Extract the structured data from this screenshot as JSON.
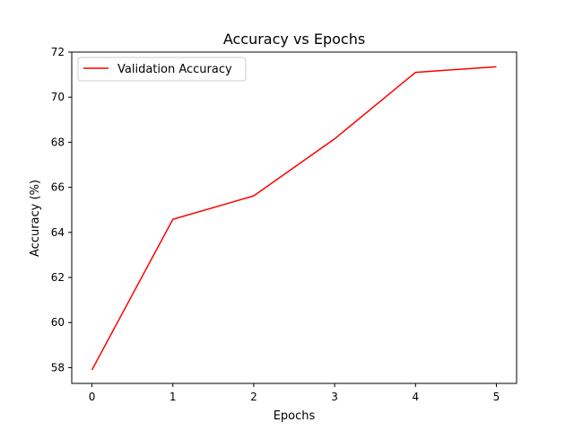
{
  "chart_data": {
    "type": "line",
    "title": "Accuracy vs Epochs",
    "xlabel": "Epochs",
    "ylabel": "Accuracy (%)",
    "x": [
      0,
      1,
      2,
      3,
      4,
      5
    ],
    "series": [
      {
        "name": "Validation Accuracy",
        "values": [
          57.9,
          64.58,
          65.62,
          68.15,
          71.1,
          71.35
        ],
        "color": "#ff0000"
      }
    ],
    "xlim": [
      -0.25,
      5.25
    ],
    "ylim": [
      57.3,
      72.0
    ],
    "xticks": [
      0,
      1,
      2,
      3,
      4,
      5
    ],
    "yticks": [
      58,
      60,
      62,
      64,
      66,
      68,
      70,
      72
    ],
    "legend_position": "upper-left",
    "grid": false
  }
}
